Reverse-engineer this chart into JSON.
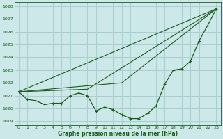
{
  "xlabel": "Graphe pression niveau de la mer (hPa)",
  "background_color": "#cce8e8",
  "grid_color": "#aacfcf",
  "line_color": "#1a5c1a",
  "text_color": "#1a5c1a",
  "ylim": [
    1018.7,
    1028.3
  ],
  "xlim": [
    -0.5,
    23.5
  ],
  "yticks": [
    1019,
    1020,
    1021,
    1022,
    1023,
    1024,
    1025,
    1026,
    1027,
    1028
  ],
  "xticks": [
    0,
    1,
    2,
    3,
    4,
    5,
    6,
    7,
    8,
    9,
    10,
    11,
    12,
    13,
    14,
    15,
    16,
    17,
    18,
    19,
    20,
    21,
    22,
    23
  ],
  "main_series": {
    "x": [
      0,
      1,
      2,
      3,
      4,
      5,
      6,
      7,
      8,
      9,
      10,
      11,
      12,
      13,
      14,
      15,
      16,
      17,
      18,
      19,
      20,
      21,
      22,
      23
    ],
    "y": [
      1021.3,
      1020.7,
      1020.6,
      1020.3,
      1020.4,
      1020.4,
      1021.0,
      1021.2,
      1021.0,
      1019.8,
      1020.1,
      1019.9,
      1019.5,
      1019.2,
      1019.2,
      1019.6,
      1020.2,
      1021.9,
      1023.0,
      1023.1,
      1023.7,
      1025.3,
      1026.5,
      1027.8
    ]
  },
  "ref_lines": [
    {
      "x": [
        0,
        23
      ],
      "y": [
        1021.3,
        1027.8
      ]
    },
    {
      "x": [
        0,
        8,
        23
      ],
      "y": [
        1021.3,
        1021.5,
        1027.8
      ]
    },
    {
      "x": [
        0,
        12,
        23
      ],
      "y": [
        1021.3,
        1022.0,
        1027.8
      ]
    }
  ]
}
